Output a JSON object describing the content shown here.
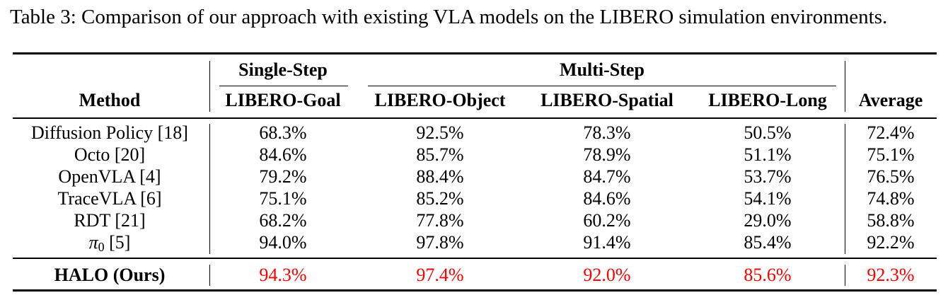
{
  "caption": "Table 3: Comparison of our approach with existing VLA models on the LIBERO simulation environments.",
  "header": {
    "group_single": "Single-Step",
    "group_multi": "Multi-Step",
    "method": "Method",
    "goal": "LIBERO-Goal",
    "object": "LIBERO-Object",
    "spatial": "LIBERO-Spatial",
    "long": "LIBERO-Long",
    "average": "Average"
  },
  "rows": [
    {
      "method": "Diffusion Policy [18]",
      "goal": "68.3%",
      "object": "92.5%",
      "spatial": "78.3%",
      "long": "50.5%",
      "average": "72.4%"
    },
    {
      "method": "Octo [20]",
      "goal": "84.6%",
      "object": "85.7%",
      "spatial": "78.9%",
      "long": "51.1%",
      "average": "75.1%"
    },
    {
      "method": "OpenVLA [4]",
      "goal": "79.2%",
      "object": "88.4%",
      "spatial": "84.7%",
      "long": "53.7%",
      "average": "76.5%"
    },
    {
      "method": "TraceVLA [6]",
      "goal": "75.1%",
      "object": "85.2%",
      "spatial": "84.6%",
      "long": "54.1%",
      "average": "74.8%"
    },
    {
      "method": "RDT [21]",
      "goal": "68.2%",
      "object": "77.8%",
      "spatial": "60.2%",
      "long": "29.0%",
      "average": "58.8%"
    },
    {
      "method_symbol": "π",
      "method_sub": "0",
      "method_ref": " [5]",
      "goal": "94.0%",
      "object": "97.8%",
      "spatial": "91.4%",
      "long": "85.4%",
      "average": "92.2%"
    }
  ],
  "ours": {
    "method": "HALO (Ours)",
    "goal": "94.3%",
    "object": "97.4%",
    "spatial": "92.0%",
    "long": "85.6%",
    "average": "92.3%"
  },
  "colors": {
    "highlight": "#ff0000"
  }
}
